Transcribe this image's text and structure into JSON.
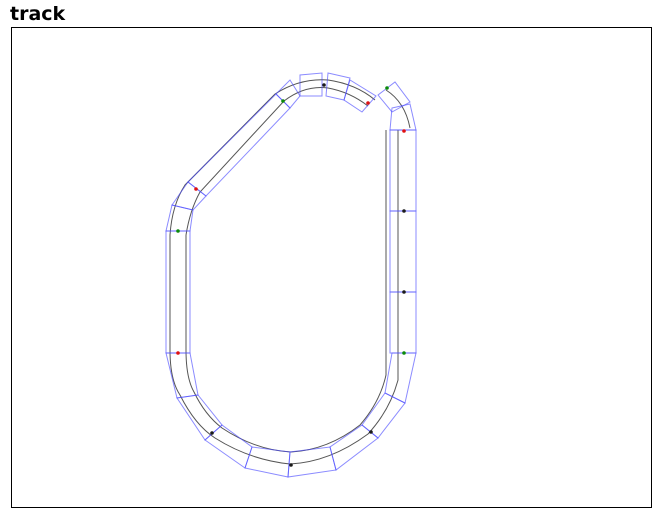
{
  "title": "track",
  "colors": {
    "segment_outline": "#4d4dff",
    "rail": "#555555",
    "joint_green": "#0a8a0a",
    "joint_red": "#e01010",
    "joint_dark": "#1a1a1a"
  }
}
